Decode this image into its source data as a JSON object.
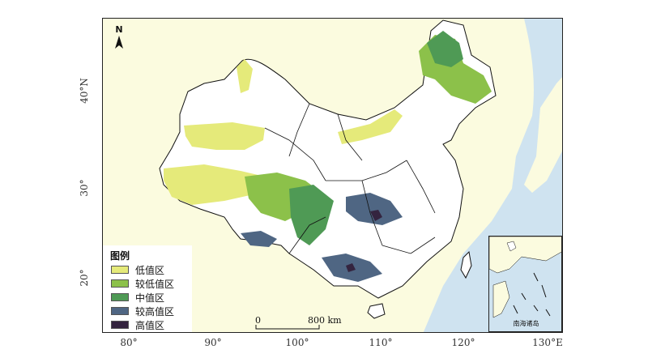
{
  "map": {
    "north_label": "N",
    "legend": {
      "title": "图例",
      "items": [
        {
          "label": "低值区",
          "color": "#e5ea7a"
        },
        {
          "label": "较低值区",
          "color": "#8cc14a"
        },
        {
          "label": "中值区",
          "color": "#4f9a55"
        },
        {
          "label": "较高值区",
          "color": "#4f6683"
        },
        {
          "label": "高值区",
          "color": "#34243f"
        }
      ]
    },
    "x_ticks": [
      "80°",
      "90°",
      "100°",
      "110°",
      "120°",
      "130°E"
    ],
    "y_ticks": [
      "40°N",
      "30°",
      "20°"
    ],
    "scale_bar": {
      "zero": "0",
      "label": "800 km"
    },
    "inset_label": "南海诸岛",
    "colors": {
      "sea": "#cfe3f0",
      "land_outside": "#fbfbdf",
      "land_inside": "#ffffff",
      "boundary": "#111111"
    }
  }
}
